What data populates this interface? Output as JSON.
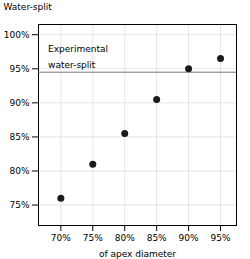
{
  "chart_data": {
    "type": "scatter",
    "xlabel": "of apex diameter",
    "ylabel": "Water-split",
    "x": [
      70,
      75,
      80,
      85,
      90,
      95
    ],
    "values": [
      76,
      81,
      85.5,
      90.5,
      95,
      96.5
    ],
    "color": "#1a1a1a",
    "xlim": [
      66.5,
      97.5
    ],
    "ylim": [
      72,
      101.5
    ],
    "xticks": [
      {
        "value": 70,
        "label": "70%"
      },
      {
        "value": 75,
        "label": "75%"
      },
      {
        "value": 80,
        "label": "80%"
      },
      {
        "value": 85,
        "label": "85%"
      },
      {
        "value": 90,
        "label": "90%"
      },
      {
        "value": 95,
        "label": "95%"
      }
    ],
    "yticks": [
      {
        "value": 75,
        "label": "75%"
      },
      {
        "value": 80,
        "label": "80%"
      },
      {
        "value": 85,
        "label": "85%"
      },
      {
        "value": 90,
        "label": "90%"
      },
      {
        "value": 95,
        "label": "95%"
      },
      {
        "value": 100,
        "label": "100%"
      }
    ],
    "reference_lines": [
      {
        "y": 94.5,
        "color": "#777777"
      }
    ],
    "annotations": [
      {
        "text": "Experimental",
        "x": 68,
        "y": 97.5
      },
      {
        "text": "water-split",
        "x": 68,
        "y": 96.0
      }
    ],
    "grid": true
  }
}
